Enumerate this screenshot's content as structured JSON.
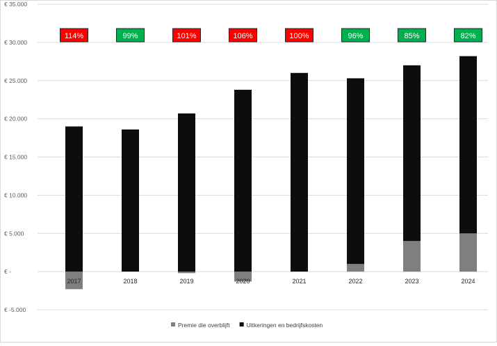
{
  "chart_data": {
    "type": "bar",
    "stacked": true,
    "categories": [
      "2017",
      "2018",
      "2019",
      "2020",
      "2021",
      "2022",
      "2023",
      "2024"
    ],
    "series": [
      {
        "name": "Premie die overblijft",
        "color": "#7f7f7f",
        "values": [
          -2300,
          0,
          -200,
          -1300,
          0,
          1000,
          4000,
          5000
        ]
      },
      {
        "name": "Uitkeringen en bedrijfskosten",
        "color": "#0d0d0d",
        "values": [
          19000,
          18600,
          20700,
          23800,
          26000,
          24300,
          23000,
          23200
        ]
      }
    ],
    "ratios": [
      {
        "label": "114%",
        "status": "red"
      },
      {
        "label": "99%",
        "status": "green"
      },
      {
        "label": "101%",
        "status": "red"
      },
      {
        "label": "106%",
        "status": "red"
      },
      {
        "label": "100%",
        "status": "red"
      },
      {
        "label": "96%",
        "status": "green"
      },
      {
        "label": "85%",
        "status": "green"
      },
      {
        "label": "82%",
        "status": "green"
      }
    ],
    "status_colors": {
      "red": "#ff0000",
      "green": "#00b050"
    },
    "ylim": [
      -5000,
      35000
    ],
    "y_ticks": [
      35000,
      30000,
      25000,
      20000,
      15000,
      10000,
      5000,
      0,
      -5000
    ],
    "y_tick_labels": [
      "€ 35.000",
      "€ 30.000",
      "€ 25.000",
      "€ 20.000",
      "€ 15.000",
      "€ 10.000",
      "€ 5.000",
      "€ -",
      "€ -5.000"
    ],
    "grid": true,
    "legend": "bottom",
    "title": "",
    "xlabel": "",
    "ylabel": ""
  }
}
